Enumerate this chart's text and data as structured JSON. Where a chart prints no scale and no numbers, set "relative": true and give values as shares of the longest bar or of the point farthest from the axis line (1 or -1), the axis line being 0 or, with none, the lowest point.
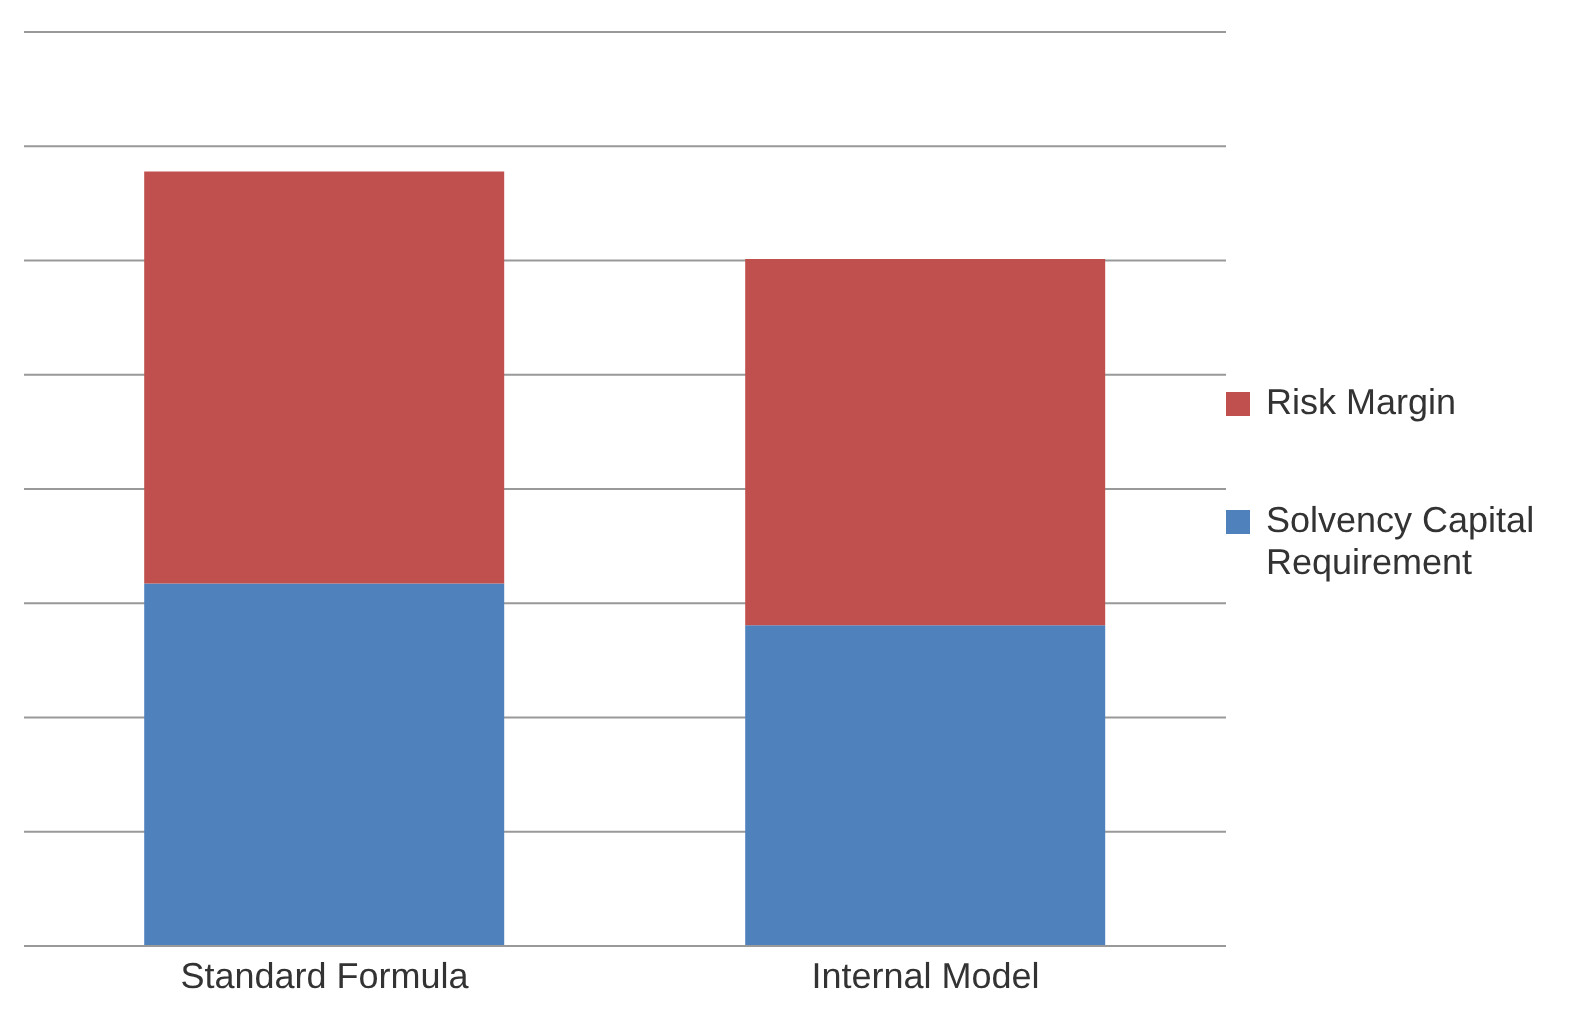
{
  "chart_data": {
    "type": "bar",
    "stacked": true,
    "relative": true,
    "categories": [
      "Standard Formula",
      "Internal Model"
    ],
    "series": [
      {
        "name": "Solvency Capital Requirement",
        "color": "#4f81bd",
        "values": [
          0.468,
          0.414
        ]
      },
      {
        "name": "Risk Margin",
        "color": "#c0504d",
        "values": [
          0.532,
          0.473
        ]
      }
    ],
    "grid": "y",
    "legend": "right"
  }
}
